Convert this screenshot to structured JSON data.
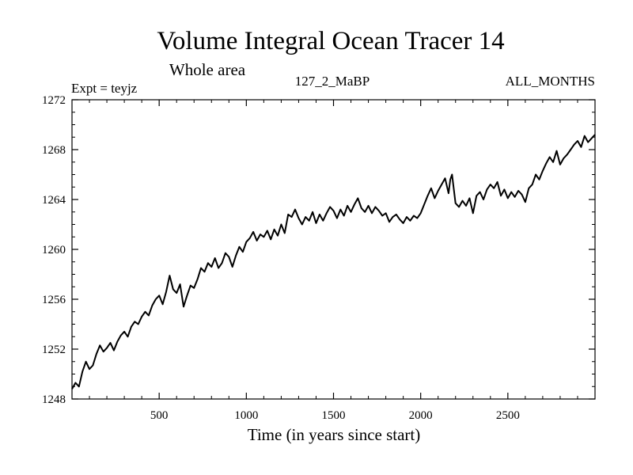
{
  "chart_data": {
    "type": "line",
    "title": "Volume Integral Ocean Tracer 14",
    "subtitle": "Whole area",
    "left_label": "Expt = teyjz",
    "center_label": "127_2_MaBP",
    "right_label": "ALL_MONTHS",
    "xlabel": "Time (in years since start)",
    "ylabel": "",
    "xlim": [
      0,
      3000
    ],
    "ylim": [
      1248,
      1272
    ],
    "x_ticks": [
      500,
      1000,
      1500,
      2000,
      2500
    ],
    "y_ticks": [
      1248,
      1252,
      1256,
      1260,
      1264,
      1268,
      1272
    ],
    "series": [
      {
        "name": "Volume Integral Ocean Tracer 14",
        "color": "#000000",
        "x": [
          0,
          20,
          40,
          60,
          80,
          100,
          120,
          140,
          160,
          180,
          200,
          220,
          240,
          260,
          280,
          300,
          320,
          340,
          360,
          380,
          400,
          420,
          440,
          460,
          480,
          500,
          520,
          540,
          560,
          580,
          600,
          620,
          640,
          660,
          680,
          700,
          720,
          740,
          760,
          780,
          800,
          820,
          840,
          860,
          880,
          900,
          920,
          940,
          960,
          980,
          1000,
          1020,
          1040,
          1060,
          1080,
          1100,
          1120,
          1140,
          1160,
          1180,
          1200,
          1220,
          1240,
          1260,
          1280,
          1300,
          1320,
          1340,
          1360,
          1380,
          1400,
          1420,
          1440,
          1460,
          1480,
          1500,
          1520,
          1540,
          1560,
          1580,
          1600,
          1620,
          1640,
          1660,
          1680,
          1700,
          1720,
          1740,
          1760,
          1780,
          1800,
          1820,
          1840,
          1860,
          1880,
          1900,
          1920,
          1940,
          1960,
          1980,
          2000,
          2020,
          2040,
          2060,
          2080,
          2100,
          2120,
          2140,
          2160,
          2170,
          2180,
          2200,
          2220,
          2240,
          2260,
          2280,
          2300,
          2320,
          2340,
          2360,
          2380,
          2400,
          2420,
          2440,
          2460,
          2480,
          2500,
          2520,
          2540,
          2560,
          2580,
          2600,
          2620,
          2640,
          2660,
          2680,
          2700,
          2720,
          2740,
          2760,
          2780,
          2800,
          2820,
          2840,
          2860,
          2880,
          2900,
          2920,
          2940,
          2960,
          2980,
          3000
        ],
        "values": [
          1248.8,
          1249.3,
          1249.0,
          1250.2,
          1251.0,
          1250.4,
          1250.7,
          1251.6,
          1252.3,
          1251.8,
          1252.1,
          1252.5,
          1251.9,
          1252.6,
          1253.1,
          1253.4,
          1253.0,
          1253.8,
          1254.2,
          1254.0,
          1254.6,
          1255.0,
          1254.7,
          1255.5,
          1256.0,
          1256.3,
          1255.6,
          1256.6,
          1257.9,
          1256.8,
          1256.5,
          1257.2,
          1255.4,
          1256.3,
          1257.1,
          1256.9,
          1257.6,
          1258.5,
          1258.2,
          1258.9,
          1258.6,
          1259.3,
          1258.5,
          1258.9,
          1259.7,
          1259.4,
          1258.6,
          1259.5,
          1260.2,
          1259.8,
          1260.6,
          1260.9,
          1261.4,
          1260.7,
          1261.2,
          1261.0,
          1261.5,
          1260.8,
          1261.6,
          1261.1,
          1262.0,
          1261.3,
          1262.8,
          1262.6,
          1263.2,
          1262.5,
          1262.0,
          1262.6,
          1262.3,
          1263.0,
          1262.1,
          1262.8,
          1262.3,
          1262.9,
          1263.4,
          1263.1,
          1262.5,
          1263.2,
          1262.7,
          1263.5,
          1263.0,
          1263.6,
          1264.1,
          1263.3,
          1263.0,
          1263.5,
          1262.9,
          1263.4,
          1263.1,
          1262.7,
          1262.9,
          1262.2,
          1262.6,
          1262.8,
          1262.4,
          1262.1,
          1262.6,
          1262.3,
          1262.7,
          1262.5,
          1262.9,
          1263.6,
          1264.3,
          1264.9,
          1264.1,
          1264.7,
          1265.2,
          1265.7,
          1264.5,
          1265.6,
          1266.0,
          1263.7,
          1263.4,
          1263.9,
          1263.5,
          1264.1,
          1262.9,
          1264.3,
          1264.6,
          1264.0,
          1264.8,
          1265.2,
          1264.9,
          1265.4,
          1264.3,
          1264.8,
          1264.1,
          1264.6,
          1264.2,
          1264.7,
          1264.4,
          1263.8,
          1264.9,
          1265.2,
          1266.0,
          1265.6,
          1266.3,
          1266.9,
          1267.4,
          1267.0,
          1267.9,
          1266.8,
          1267.3,
          1267.6,
          1268.0,
          1268.4,
          1268.7,
          1268.2,
          1269.1,
          1268.6,
          1268.9,
          1269.2
        ]
      }
    ]
  }
}
